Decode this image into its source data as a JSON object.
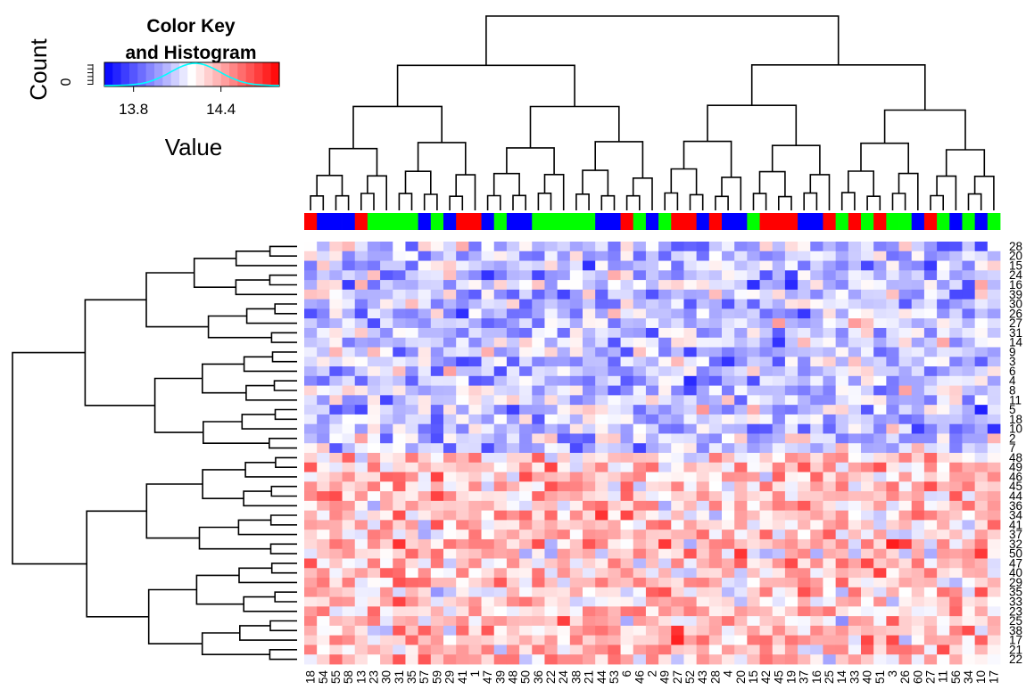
{
  "chart_data": {
    "type": "heatmap",
    "color_key": {
      "title_line1": "Color Key",
      "title_line2": "and Histogram",
      "y_label": "Count",
      "y_tick": "0",
      "x_label": "Value",
      "x_ticks": [
        {
          "label": "13.8",
          "value": 13.8
        },
        {
          "label": "14.4",
          "value": 14.4
        }
      ],
      "range": [
        13.6,
        14.8
      ],
      "colors": {
        "low": "#0000ff",
        "mid": "#ffffff",
        "high": "#ff0000",
        "histogram": "#00ffff"
      }
    },
    "column_labels": [
      "18",
      "54",
      "55",
      "58",
      "13",
      "23",
      "30",
      "31",
      "35",
      "57",
      "59",
      "29",
      "41",
      "1",
      "47",
      "39",
      "48",
      "50",
      "36",
      "22",
      "24",
      "38",
      "21",
      "44",
      "53",
      "6",
      "46",
      "2",
      "49",
      "27",
      "52",
      "43",
      "28",
      "4",
      "20",
      "15",
      "42",
      "45",
      "19",
      "37",
      "16",
      "25",
      "14",
      "33",
      "40",
      "51",
      "3",
      "26",
      "60",
      "27",
      "11",
      "56",
      "34",
      "10",
      "17"
    ],
    "row_labels": [
      "28",
      "20",
      "15",
      "24",
      "16",
      "39",
      "30",
      "26",
      "27",
      "31",
      "14",
      "9",
      "3",
      "6",
      "4",
      "8",
      "11",
      "5",
      "18",
      "10",
      "2",
      "7",
      "48",
      "49",
      "46",
      "45",
      "44",
      "36",
      "34",
      "41",
      "37",
      "32",
      "50",
      "47",
      "40",
      "29",
      "35",
      "33",
      "23",
      "25",
      "38",
      "17",
      "21",
      "22"
    ],
    "column_groups": [
      "r",
      "b",
      "b",
      "b",
      "r",
      "g",
      "g",
      "g",
      "g",
      "b",
      "g",
      "b",
      "r",
      "r",
      "b",
      "g",
      "b",
      "b",
      "g",
      "g",
      "g",
      "g",
      "g",
      "b",
      "b",
      "r",
      "g",
      "b",
      "g",
      "r",
      "r",
      "b",
      "r",
      "b",
      "b",
      "g",
      "r",
      "r",
      "r",
      "b",
      "b",
      "r",
      "g",
      "r",
      "g",
      "r",
      "g",
      "g",
      "b",
      "r",
      "g",
      "b",
      "g",
      "b",
      "g"
    ],
    "group_colors": {
      "r": "#ff0000",
      "b": "#0000ff",
      "g": "#00ff00"
    },
    "value_scale": [
      -1,
      1
    ],
    "row_block_split": 22
  }
}
